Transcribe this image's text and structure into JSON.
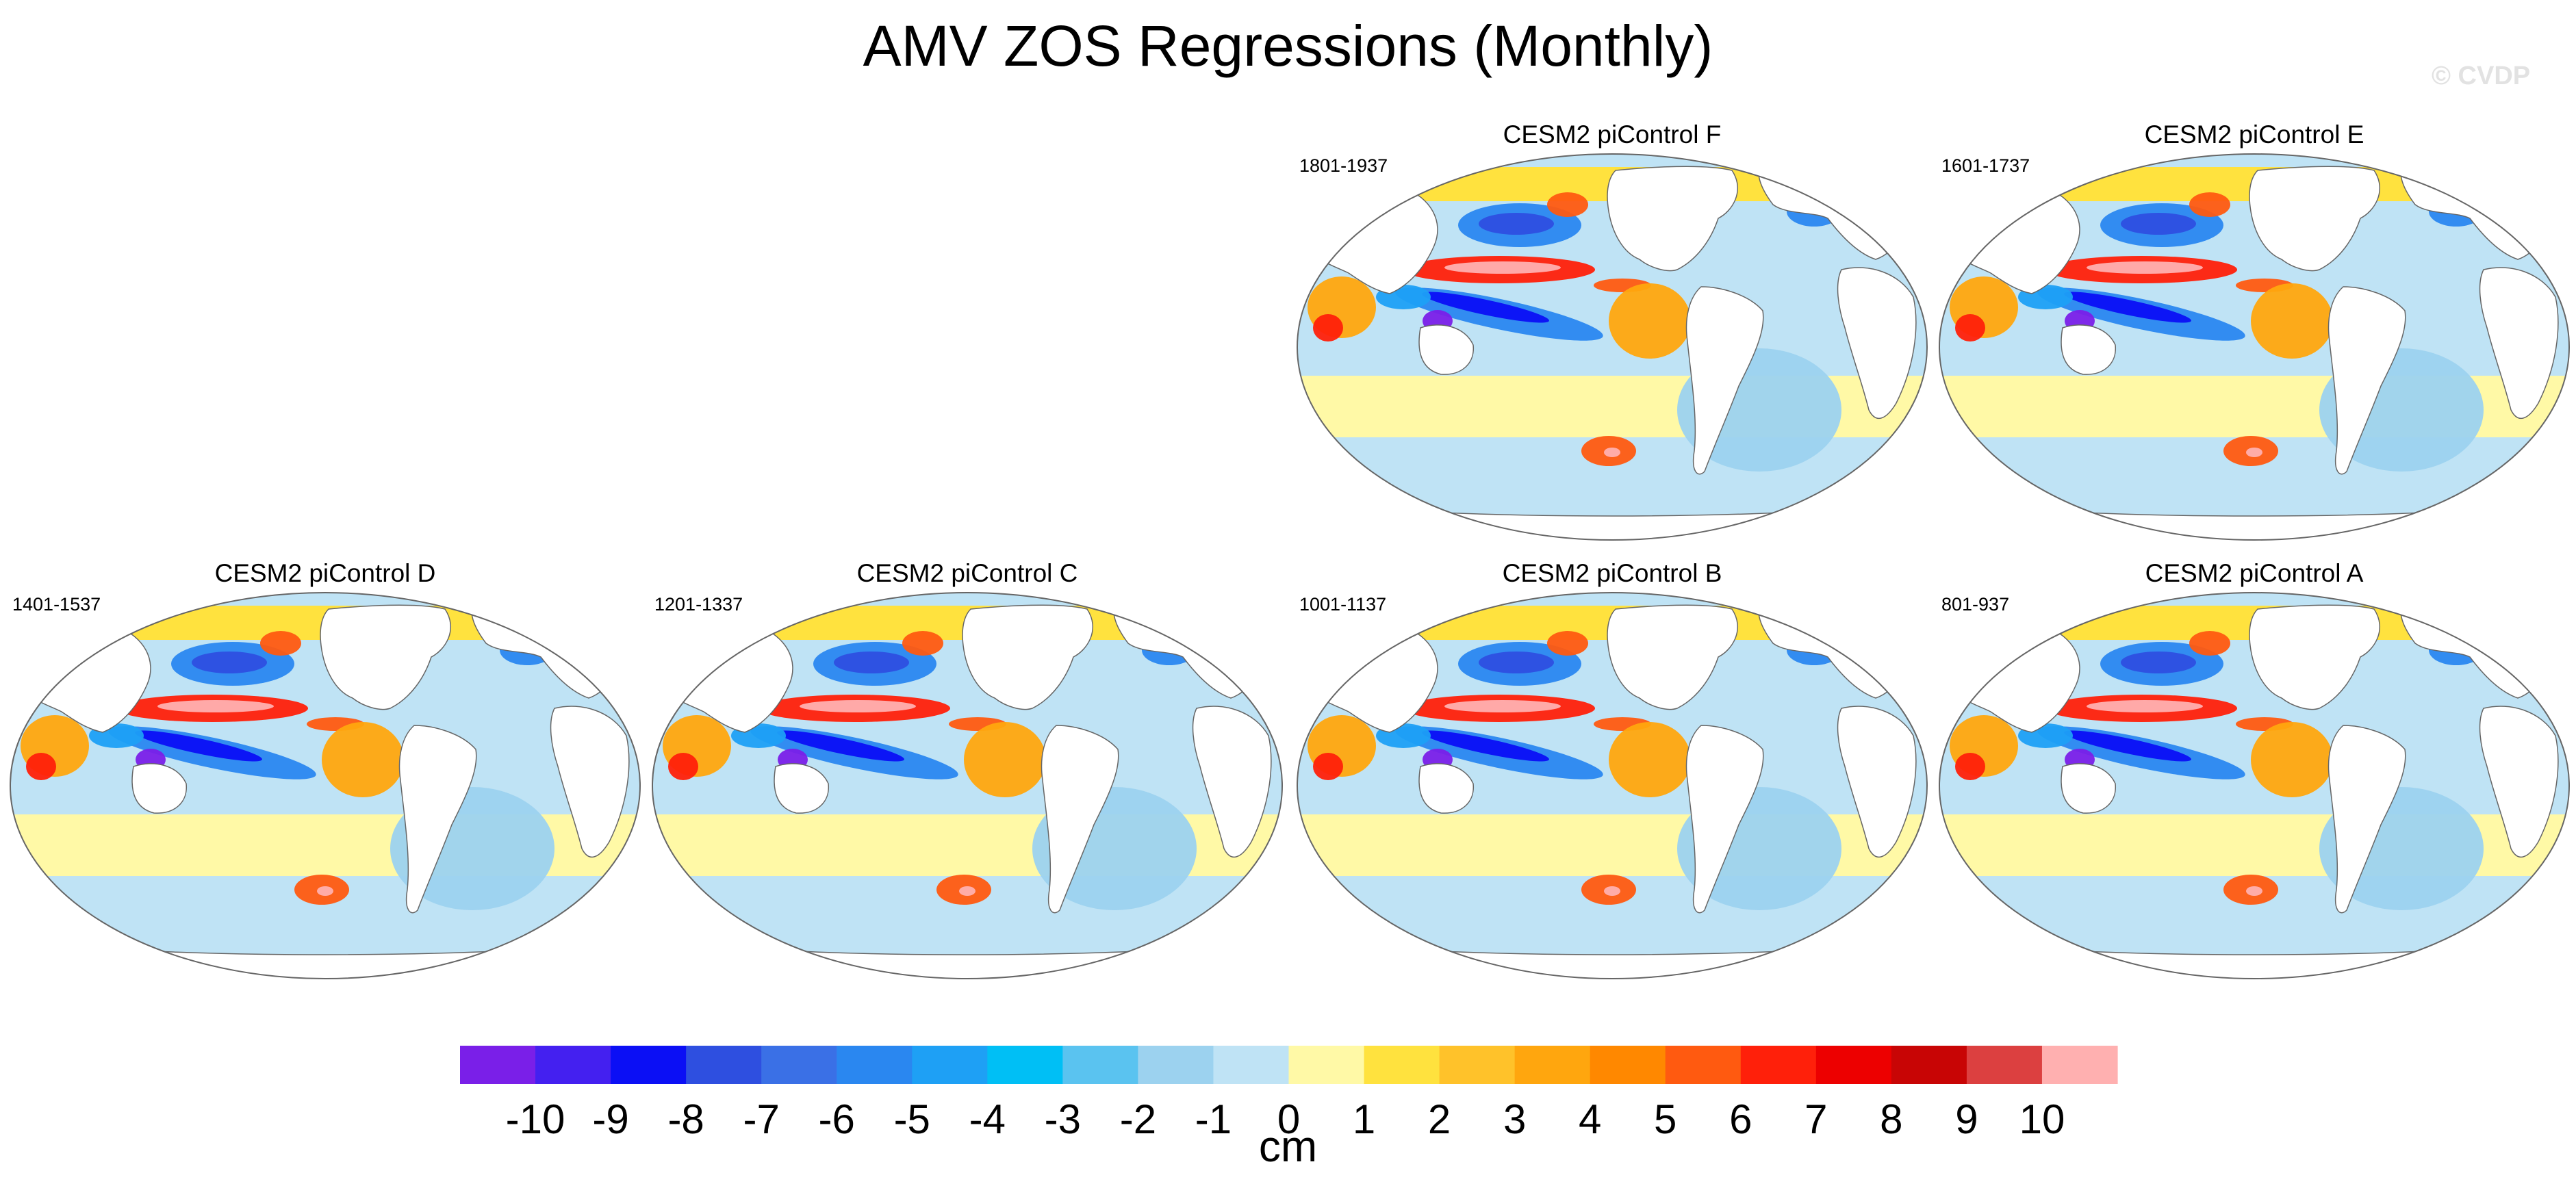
{
  "title": "AMV ZOS Regressions (Monthly)",
  "watermark": "© CVDP",
  "chart_data": {
    "type": "heatmap",
    "variable": "ZOS regression onto AMV index",
    "units": "cm",
    "colorbar": {
      "levels": [
        -10,
        -9,
        -8,
        -7,
        -6,
        -5,
        -4,
        -3,
        -2,
        -1,
        0,
        1,
        2,
        3,
        4,
        5,
        6,
        7,
        8,
        9,
        10
      ],
      "colors": [
        "#7a1fe8",
        "#4420f0",
        "#0b0ff5",
        "#2e4fe0",
        "#3a70e6",
        "#2a87f0",
        "#1ea0f5",
        "#00bff5",
        "#5ac3f0",
        "#9cd2ef",
        "#bfe3f5",
        "#fff9a6",
        "#ffe23e",
        "#ffc22a",
        "#ffa60e",
        "#ff8800",
        "#ff5a10",
        "#ff200a",
        "#ed0000",
        "#c80505",
        "#dc4040",
        "#ffb0b0"
      ]
    },
    "panels": [
      {
        "id": "F",
        "label": "CESM2 piControl F",
        "years": "1801-1937"
      },
      {
        "id": "E",
        "label": "CESM2 piControl E",
        "years": "1601-1737"
      },
      {
        "id": "D",
        "label": "CESM2 piControl D",
        "years": "1401-1537"
      },
      {
        "id": "C",
        "label": "CESM2 piControl C",
        "years": "1201-1337"
      },
      {
        "id": "B",
        "label": "CESM2 piControl B",
        "years": "1001-1137"
      },
      {
        "id": "A",
        "label": "CESM2 piControl A",
        "years": "801-937"
      }
    ]
  }
}
